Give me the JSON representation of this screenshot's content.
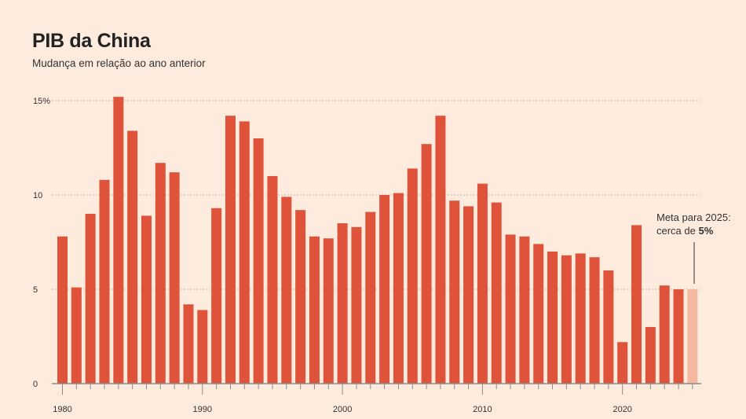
{
  "chart_data": {
    "type": "bar",
    "title": "PIB da China",
    "subtitle": "Mudança em relação ao ano anterior",
    "x": [
      1980,
      1981,
      1982,
      1983,
      1984,
      1985,
      1986,
      1987,
      1988,
      1989,
      1990,
      1991,
      1992,
      1993,
      1994,
      1995,
      1996,
      1997,
      1998,
      1999,
      2000,
      2001,
      2002,
      2003,
      2004,
      2005,
      2006,
      2007,
      2008,
      2009,
      2010,
      2011,
      2012,
      2013,
      2014,
      2015,
      2016,
      2017,
      2018,
      2019,
      2020,
      2021,
      2022,
      2023,
      2024,
      2025
    ],
    "values": [
      7.8,
      5.1,
      9.0,
      10.8,
      15.2,
      13.4,
      8.9,
      11.7,
      11.2,
      4.2,
      3.9,
      9.3,
      14.2,
      13.9,
      13.0,
      11.0,
      9.9,
      9.2,
      7.8,
      7.7,
      8.5,
      8.3,
      9.1,
      10.0,
      10.1,
      11.4,
      12.7,
      14.2,
      9.7,
      9.4,
      10.6,
      9.6,
      7.9,
      7.8,
      7.4,
      7.0,
      6.8,
      6.9,
      6.7,
      6.0,
      2.2,
      8.4,
      3.0,
      5.2,
      5.0,
      5.0
    ],
    "highlight_year": 2025,
    "ylim": [
      0,
      15
    ],
    "yticks": [
      {
        "value": 0,
        "label": "0"
      },
      {
        "value": 5,
        "label": "5"
      },
      {
        "value": 10,
        "label": "10"
      },
      {
        "value": 15,
        "label": "15%"
      }
    ],
    "xticks": [
      {
        "value": 1980,
        "label": "1980"
      },
      {
        "value": 1990,
        "label": "1990"
      },
      {
        "value": 2000,
        "label": "2000"
      },
      {
        "value": 2010,
        "label": "2010"
      },
      {
        "value": 2020,
        "label": "2020"
      }
    ],
    "grid": true,
    "annotation": {
      "line1": "Meta para 2025:",
      "line2_prefix": "cerca de ",
      "line2_bold": "5%"
    },
    "colors": {
      "bar": "#e0533b",
      "highlight": "#f4b9a0",
      "background": "#fdebdd",
      "grid": "#c9b8ab",
      "axis": "#8a8a8a"
    }
  }
}
